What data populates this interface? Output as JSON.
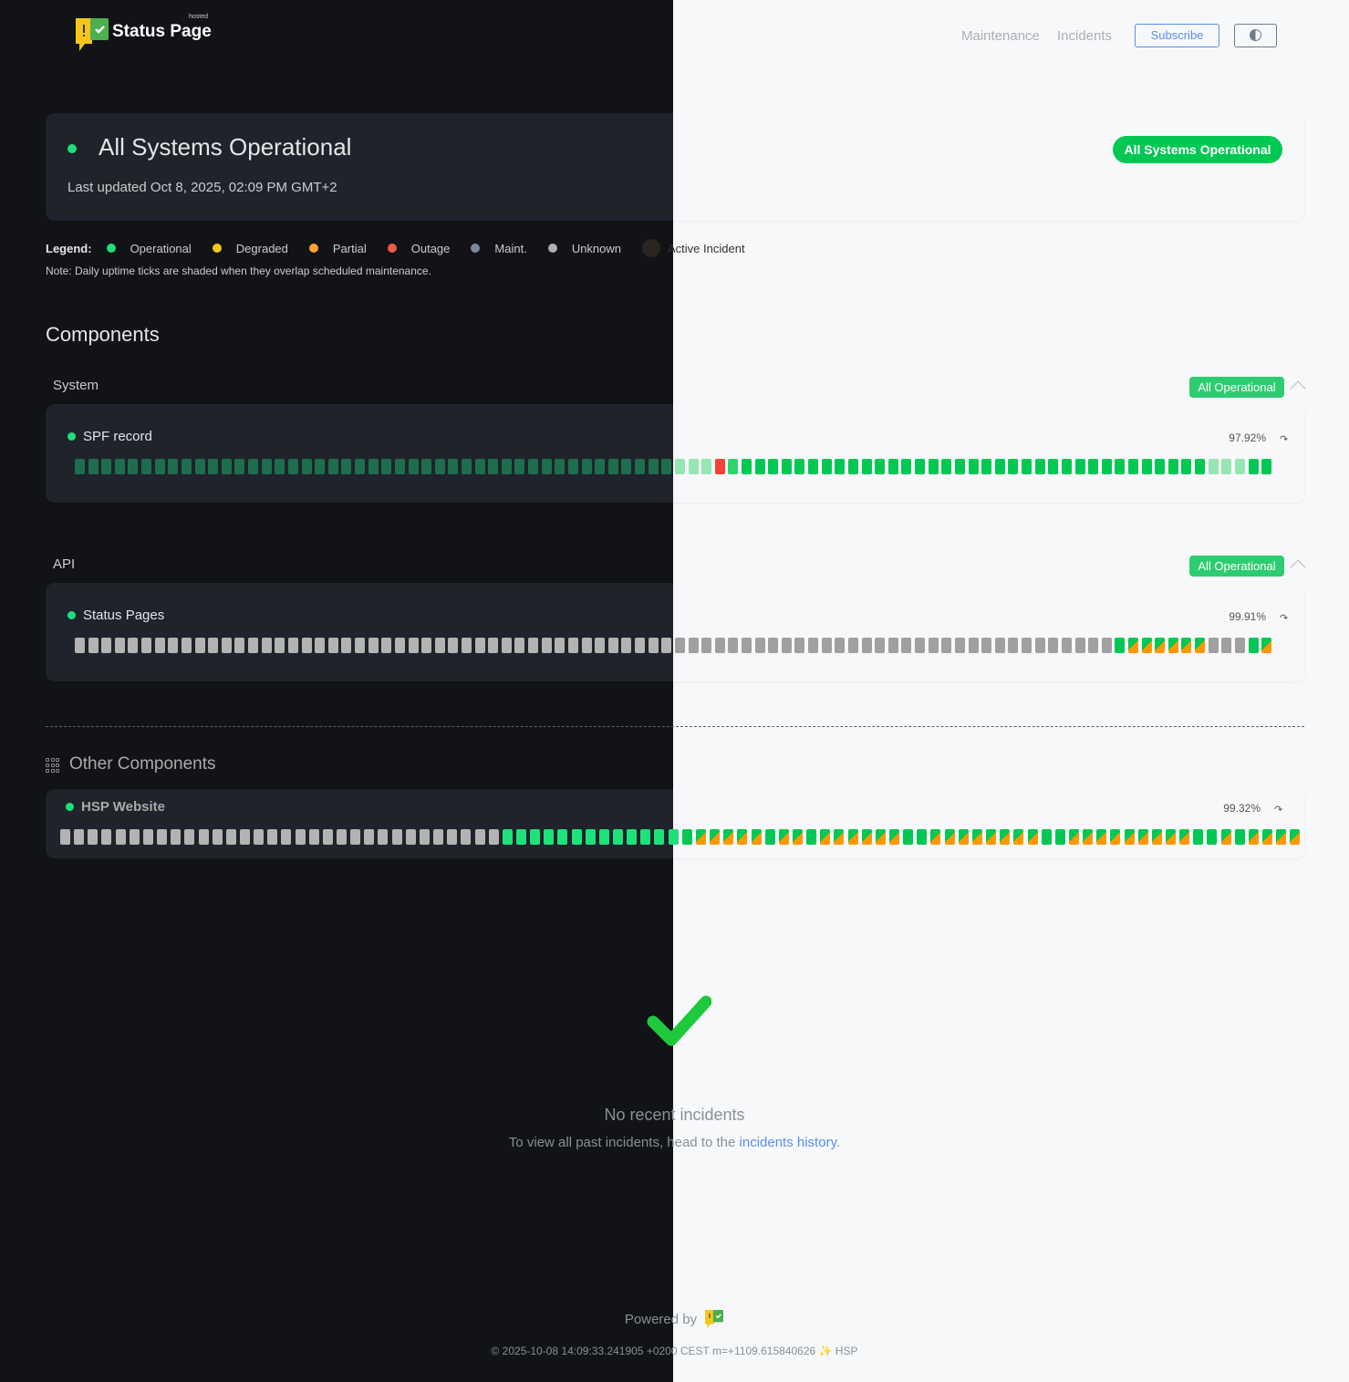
{
  "header": {
    "brand": "Status Page",
    "brand_tag": "hosted",
    "nav": [
      "Maintenance",
      "Incidents"
    ],
    "subscribe_label": "Subscribe",
    "theme_toggle_icon": "contrast-icon"
  },
  "status": {
    "title": "All Systems Operational",
    "last_updated": "Last updated Oct 8, 2025, 02:09 PM GMT+2",
    "pill": "All Systems Operational"
  },
  "legend": {
    "label": "Legend:",
    "items": [
      {
        "label": "Operational",
        "color": "#1ddf79"
      },
      {
        "label": "Degraded",
        "color": "#f5c518"
      },
      {
        "label": "Partial",
        "color": "#ffa033"
      },
      {
        "label": "Outage",
        "color": "#f0584a"
      },
      {
        "label": "Maint.",
        "color": "#7a8a99"
      },
      {
        "label": "Unknown",
        "color": "#b0b0b0"
      },
      {
        "label": "Active Incident",
        "color": "#2a2520"
      }
    ],
    "note": "Note: Daily uptime ticks are shaded when they overlap scheduled maintenance."
  },
  "components": {
    "heading": "Components",
    "groups": [
      {
        "name": "System",
        "badge": "All Operational",
        "component": {
          "name": "SPF record",
          "uptime": "97.92%",
          "ticks": "ssssssssssssssssssssssssssssssssssssssssssssssssxgooooooooooooooooooooooooooooooooooosssoo"
        }
      },
      {
        "name": "API",
        "badge": "All Operational",
        "component": {
          "name": "Status Pages",
          "uptime": "99.91%",
          "ticks": "uuuuuuuuuuuuuuuuuuuuuuuuuuuuuuuuuuuuuuuuuuuuuuuuuuuuuuuuuuuuuuuuuuuuuuuuuuuuuuohhhhhhuuuoh"
        }
      }
    ],
    "other_heading": "Other Components",
    "other": [
      {
        "name": "HSP Website",
        "uptime": "99.32%",
        "ticks": "uuuuuuuuuuuuuuuuuuuuuuuuuuuuuuuuoooooooooooooohhhhhohhohhhhhhoohhhhhhhhooh"
      }
    ],
    "tick_legend": {
      "o": "operational",
      "s": "operational-shaded-maintenance",
      "x": "outage",
      "g": "operational",
      "u": "unknown",
      "h": "partial"
    }
  },
  "incidents": {
    "title": "No recent incidents",
    "text": "To view all past incidents, head to the ",
    "link": "incidents history",
    "after": "."
  },
  "footer": {
    "powered_by": "Powered by",
    "build": "© 2025-10-08 14:09:33.241905 +0200 CEST m=+1109.615840626 ✨ HSP"
  },
  "colors": {
    "accent": "#00c853",
    "link": "#5b8def",
    "outage": "#f44336",
    "partial": "#ff9800"
  }
}
